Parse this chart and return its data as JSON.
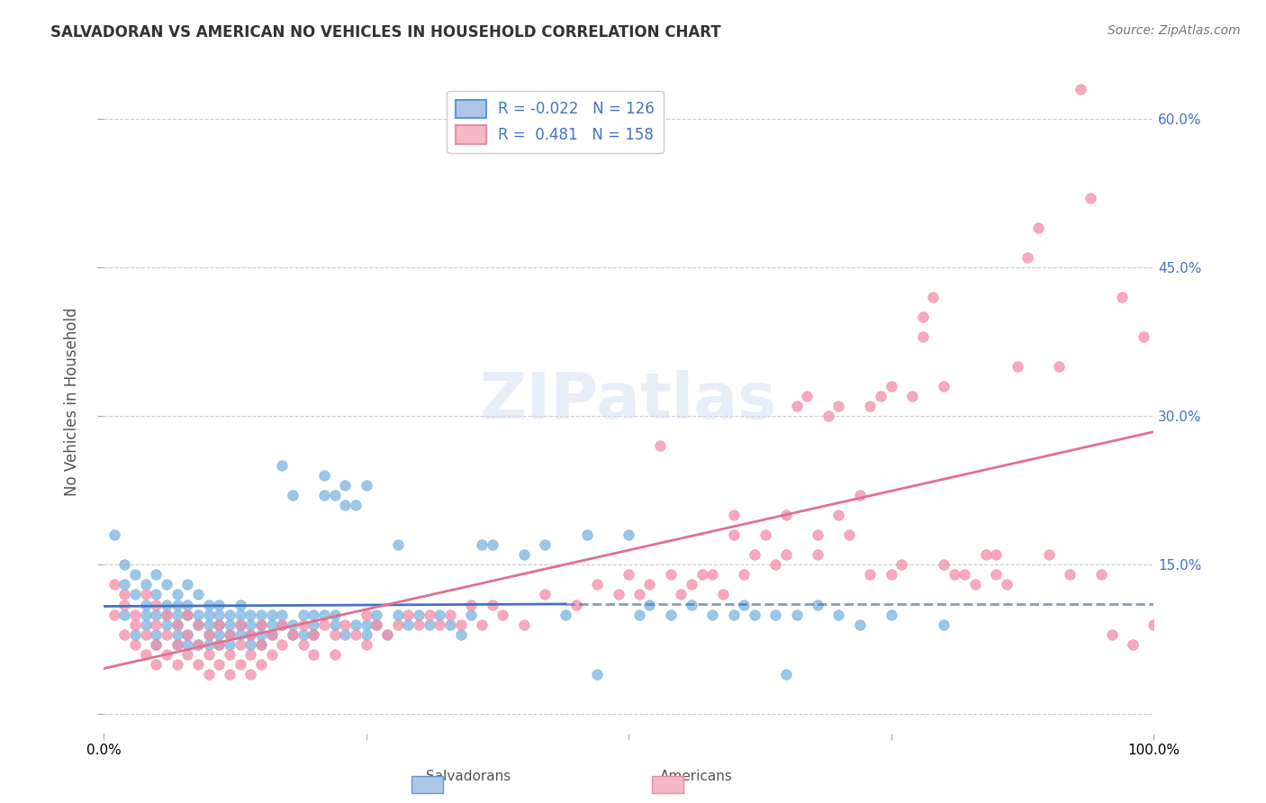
{
  "title": "SALVADORAN VS AMERICAN NO VEHICLES IN HOUSEHOLD CORRELATION CHART",
  "source": "Source: ZipAtlas.com",
  "ylabel": "No Vehicles in Household",
  "xlim": [
    0.0,
    1.0
  ],
  "ylim": [
    -0.02,
    0.65
  ],
  "yticks": [
    0.0,
    0.15,
    0.3,
    0.45,
    0.6
  ],
  "ytick_labels": [
    "",
    "15.0%",
    "30.0%",
    "45.0%",
    "60.0%"
  ],
  "xticks": [
    0.0,
    0.25,
    0.5,
    0.75,
    1.0
  ],
  "xtick_labels": [
    "0.0%",
    "",
    "",
    "",
    "100.0%"
  ],
  "salvadoran_color": "#7ab3e0",
  "american_color": "#f48ca8",
  "background_color": "#ffffff",
  "grid_color": "#cccccc",
  "title_color": "#333333",
  "axis_label_color": "#555555",
  "tick_color_right": "#4472c4",
  "legend_R_color": "#4472c4",
  "blue_line_color": "#4472c4",
  "pink_line_color": "#e07090",
  "legend_salv_face": "#aec6e8",
  "legend_salv_edge": "#5b9bd5",
  "legend_amer_face": "#f4b8c8",
  "legend_amer_edge": "#e88fa8",
  "legend_salv_label": "R = -0.022   N = 126",
  "legend_amer_label": "R =  0.481   N = 158",
  "watermark": "ZIPatlas",
  "salvadoran_points": [
    [
      0.01,
      0.18
    ],
    [
      0.02,
      0.1
    ],
    [
      0.02,
      0.15
    ],
    [
      0.02,
      0.13
    ],
    [
      0.03,
      0.12
    ],
    [
      0.03,
      0.08
    ],
    [
      0.03,
      0.14
    ],
    [
      0.04,
      0.1
    ],
    [
      0.04,
      0.13
    ],
    [
      0.04,
      0.11
    ],
    [
      0.04,
      0.09
    ],
    [
      0.05,
      0.12
    ],
    [
      0.05,
      0.1
    ],
    [
      0.05,
      0.08
    ],
    [
      0.05,
      0.07
    ],
    [
      0.05,
      0.14
    ],
    [
      0.06,
      0.11
    ],
    [
      0.06,
      0.09
    ],
    [
      0.06,
      0.13
    ],
    [
      0.06,
      0.1
    ],
    [
      0.07,
      0.12
    ],
    [
      0.07,
      0.09
    ],
    [
      0.07,
      0.07
    ],
    [
      0.07,
      0.08
    ],
    [
      0.07,
      0.11
    ],
    [
      0.07,
      0.1
    ],
    [
      0.08,
      0.1
    ],
    [
      0.08,
      0.13
    ],
    [
      0.08,
      0.11
    ],
    [
      0.08,
      0.08
    ],
    [
      0.08,
      0.07
    ],
    [
      0.09,
      0.09
    ],
    [
      0.09,
      0.12
    ],
    [
      0.09,
      0.1
    ],
    [
      0.09,
      0.07
    ],
    [
      0.1,
      0.11
    ],
    [
      0.1,
      0.09
    ],
    [
      0.1,
      0.08
    ],
    [
      0.1,
      0.1
    ],
    [
      0.1,
      0.07
    ],
    [
      0.11,
      0.1
    ],
    [
      0.11,
      0.08
    ],
    [
      0.11,
      0.09
    ],
    [
      0.11,
      0.11
    ],
    [
      0.11,
      0.07
    ],
    [
      0.12,
      0.1
    ],
    [
      0.12,
      0.09
    ],
    [
      0.12,
      0.08
    ],
    [
      0.12,
      0.07
    ],
    [
      0.13,
      0.11
    ],
    [
      0.13,
      0.1
    ],
    [
      0.13,
      0.09
    ],
    [
      0.13,
      0.08
    ],
    [
      0.14,
      0.1
    ],
    [
      0.14,
      0.09
    ],
    [
      0.14,
      0.08
    ],
    [
      0.14,
      0.07
    ],
    [
      0.15,
      0.1
    ],
    [
      0.15,
      0.09
    ],
    [
      0.15,
      0.08
    ],
    [
      0.15,
      0.07
    ],
    [
      0.16,
      0.1
    ],
    [
      0.16,
      0.09
    ],
    [
      0.16,
      0.08
    ],
    [
      0.17,
      0.1
    ],
    [
      0.17,
      0.09
    ],
    [
      0.17,
      0.25
    ],
    [
      0.18,
      0.22
    ],
    [
      0.18,
      0.08
    ],
    [
      0.18,
      0.09
    ],
    [
      0.19,
      0.1
    ],
    [
      0.19,
      0.08
    ],
    [
      0.2,
      0.1
    ],
    [
      0.2,
      0.09
    ],
    [
      0.2,
      0.08
    ],
    [
      0.21,
      0.24
    ],
    [
      0.21,
      0.22
    ],
    [
      0.21,
      0.1
    ],
    [
      0.22,
      0.22
    ],
    [
      0.22,
      0.1
    ],
    [
      0.22,
      0.09
    ],
    [
      0.23,
      0.23
    ],
    [
      0.23,
      0.21
    ],
    [
      0.23,
      0.08
    ],
    [
      0.24,
      0.21
    ],
    [
      0.24,
      0.09
    ],
    [
      0.25,
      0.23
    ],
    [
      0.25,
      0.09
    ],
    [
      0.25,
      0.08
    ],
    [
      0.26,
      0.1
    ],
    [
      0.26,
      0.09
    ],
    [
      0.27,
      0.08
    ],
    [
      0.28,
      0.1
    ],
    [
      0.28,
      0.17
    ],
    [
      0.29,
      0.09
    ],
    [
      0.3,
      0.1
    ],
    [
      0.31,
      0.09
    ],
    [
      0.32,
      0.1
    ],
    [
      0.33,
      0.09
    ],
    [
      0.34,
      0.08
    ],
    [
      0.35,
      0.1
    ],
    [
      0.36,
      0.17
    ],
    [
      0.37,
      0.17
    ],
    [
      0.4,
      0.16
    ],
    [
      0.42,
      0.17
    ],
    [
      0.44,
      0.1
    ],
    [
      0.46,
      0.18
    ],
    [
      0.47,
      0.04
    ],
    [
      0.5,
      0.18
    ],
    [
      0.51,
      0.1
    ],
    [
      0.52,
      0.11
    ],
    [
      0.54,
      0.1
    ],
    [
      0.56,
      0.11
    ],
    [
      0.58,
      0.1
    ],
    [
      0.6,
      0.1
    ],
    [
      0.61,
      0.11
    ],
    [
      0.62,
      0.1
    ],
    [
      0.64,
      0.1
    ],
    [
      0.65,
      0.04
    ],
    [
      0.66,
      0.1
    ],
    [
      0.68,
      0.11
    ],
    [
      0.7,
      0.1
    ],
    [
      0.72,
      0.09
    ],
    [
      0.75,
      0.1
    ],
    [
      0.8,
      0.09
    ]
  ],
  "american_points": [
    [
      0.01,
      0.13
    ],
    [
      0.01,
      0.1
    ],
    [
      0.02,
      0.12
    ],
    [
      0.02,
      0.08
    ],
    [
      0.02,
      0.11
    ],
    [
      0.03,
      0.09
    ],
    [
      0.03,
      0.07
    ],
    [
      0.03,
      0.1
    ],
    [
      0.04,
      0.08
    ],
    [
      0.04,
      0.06
    ],
    [
      0.04,
      0.12
    ],
    [
      0.05,
      0.09
    ],
    [
      0.05,
      0.07
    ],
    [
      0.05,
      0.05
    ],
    [
      0.05,
      0.11
    ],
    [
      0.06,
      0.08
    ],
    [
      0.06,
      0.06
    ],
    [
      0.06,
      0.1
    ],
    [
      0.07,
      0.07
    ],
    [
      0.07,
      0.05
    ],
    [
      0.07,
      0.09
    ],
    [
      0.08,
      0.08
    ],
    [
      0.08,
      0.06
    ],
    [
      0.08,
      0.1
    ],
    [
      0.09,
      0.07
    ],
    [
      0.09,
      0.05
    ],
    [
      0.09,
      0.09
    ],
    [
      0.1,
      0.08
    ],
    [
      0.1,
      0.06
    ],
    [
      0.1,
      0.04
    ],
    [
      0.11,
      0.09
    ],
    [
      0.11,
      0.07
    ],
    [
      0.11,
      0.05
    ],
    [
      0.12,
      0.08
    ],
    [
      0.12,
      0.06
    ],
    [
      0.12,
      0.04
    ],
    [
      0.13,
      0.09
    ],
    [
      0.13,
      0.07
    ],
    [
      0.13,
      0.05
    ],
    [
      0.14,
      0.08
    ],
    [
      0.14,
      0.06
    ],
    [
      0.14,
      0.04
    ],
    [
      0.15,
      0.09
    ],
    [
      0.15,
      0.07
    ],
    [
      0.15,
      0.05
    ],
    [
      0.16,
      0.08
    ],
    [
      0.16,
      0.06
    ],
    [
      0.17,
      0.09
    ],
    [
      0.17,
      0.07
    ],
    [
      0.18,
      0.08
    ],
    [
      0.19,
      0.09
    ],
    [
      0.19,
      0.07
    ],
    [
      0.2,
      0.08
    ],
    [
      0.2,
      0.06
    ],
    [
      0.21,
      0.09
    ],
    [
      0.22,
      0.08
    ],
    [
      0.22,
      0.06
    ],
    [
      0.23,
      0.09
    ],
    [
      0.24,
      0.08
    ],
    [
      0.25,
      0.1
    ],
    [
      0.25,
      0.07
    ],
    [
      0.26,
      0.09
    ],
    [
      0.27,
      0.08
    ],
    [
      0.28,
      0.09
    ],
    [
      0.29,
      0.1
    ],
    [
      0.3,
      0.09
    ],
    [
      0.31,
      0.1
    ],
    [
      0.32,
      0.09
    ],
    [
      0.33,
      0.1
    ],
    [
      0.34,
      0.09
    ],
    [
      0.35,
      0.11
    ],
    [
      0.36,
      0.09
    ],
    [
      0.37,
      0.11
    ],
    [
      0.38,
      0.1
    ],
    [
      0.4,
      0.09
    ],
    [
      0.42,
      0.12
    ],
    [
      0.45,
      0.11
    ],
    [
      0.47,
      0.13
    ],
    [
      0.49,
      0.12
    ],
    [
      0.5,
      0.14
    ],
    [
      0.51,
      0.12
    ],
    [
      0.52,
      0.13
    ],
    [
      0.53,
      0.27
    ],
    [
      0.54,
      0.14
    ],
    [
      0.55,
      0.12
    ],
    [
      0.56,
      0.13
    ],
    [
      0.57,
      0.14
    ],
    [
      0.58,
      0.14
    ],
    [
      0.59,
      0.12
    ],
    [
      0.6,
      0.2
    ],
    [
      0.6,
      0.18
    ],
    [
      0.61,
      0.14
    ],
    [
      0.62,
      0.16
    ],
    [
      0.63,
      0.18
    ],
    [
      0.64,
      0.15
    ],
    [
      0.65,
      0.2
    ],
    [
      0.65,
      0.16
    ],
    [
      0.66,
      0.31
    ],
    [
      0.67,
      0.32
    ],
    [
      0.68,
      0.18
    ],
    [
      0.68,
      0.16
    ],
    [
      0.69,
      0.3
    ],
    [
      0.7,
      0.2
    ],
    [
      0.7,
      0.31
    ],
    [
      0.71,
      0.18
    ],
    [
      0.72,
      0.22
    ],
    [
      0.73,
      0.14
    ],
    [
      0.73,
      0.31
    ],
    [
      0.74,
      0.32
    ],
    [
      0.75,
      0.14
    ],
    [
      0.75,
      0.33
    ],
    [
      0.76,
      0.15
    ],
    [
      0.77,
      0.32
    ],
    [
      0.78,
      0.4
    ],
    [
      0.78,
      0.38
    ],
    [
      0.79,
      0.42
    ],
    [
      0.8,
      0.15
    ],
    [
      0.8,
      0.33
    ],
    [
      0.81,
      0.14
    ],
    [
      0.82,
      0.14
    ],
    [
      0.83,
      0.13
    ],
    [
      0.84,
      0.16
    ],
    [
      0.85,
      0.14
    ],
    [
      0.85,
      0.16
    ],
    [
      0.86,
      0.13
    ],
    [
      0.87,
      0.35
    ],
    [
      0.88,
      0.46
    ],
    [
      0.89,
      0.49
    ],
    [
      0.9,
      0.16
    ],
    [
      0.91,
      0.35
    ],
    [
      0.92,
      0.14
    ],
    [
      0.93,
      0.63
    ],
    [
      0.94,
      0.52
    ],
    [
      0.95,
      0.14
    ],
    [
      0.96,
      0.08
    ],
    [
      0.97,
      0.42
    ],
    [
      0.98,
      0.07
    ],
    [
      0.99,
      0.38
    ],
    [
      1.0,
      0.09
    ]
  ]
}
